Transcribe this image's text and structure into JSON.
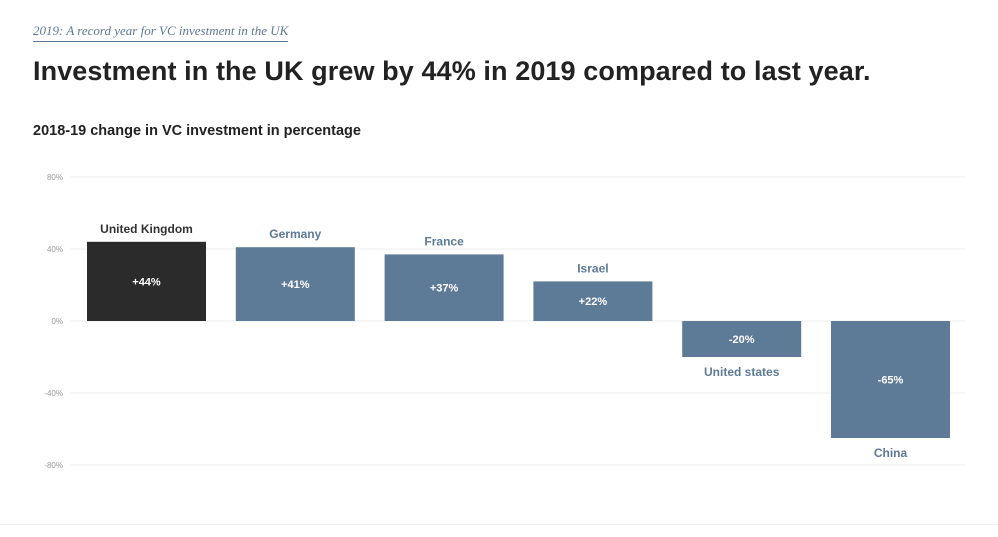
{
  "header": {
    "kicker": "2019: A record year for VC investment in the UK",
    "headline": "Investment in the UK grew by 44% in 2019 compared to last year.",
    "subtitle": "2018-19 change in VC investment in percentage"
  },
  "colors": {
    "highlight": "#2b2b2b",
    "default_bar": "#5d7a96",
    "highlight_label": "#333333",
    "default_label": "#5d7a96",
    "grid": "#eeeeee",
    "tick": "#999999"
  },
  "chart_data": {
    "type": "bar",
    "title": "2018-19 change in VC investment in percentage",
    "categories": [
      "United Kingdom",
      "Germany",
      "France",
      "Israel",
      "United states",
      "China"
    ],
    "values": [
      44,
      41,
      37,
      22,
      -20,
      -65
    ],
    "value_labels": [
      "+44%",
      "+41%",
      "+37%",
      "+22%",
      "-20%",
      "-65%"
    ],
    "highlight_index": 0,
    "ylim": [
      -80,
      80
    ],
    "yticks": [
      80,
      40,
      0,
      -40,
      -80
    ],
    "ytick_labels": [
      "80%",
      "40%",
      "0%",
      "-40%",
      "-80%"
    ],
    "grid": true,
    "legend": "none"
  }
}
